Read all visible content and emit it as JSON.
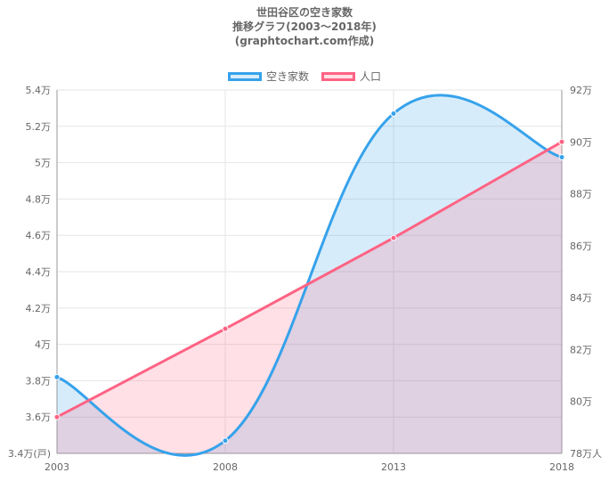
{
  "title_lines": [
    "世田谷区の空き家数",
    "推移グラフ(2003〜2018年)",
    "(graphtochart.com作成)"
  ],
  "colors": {
    "vacant_line": "#36a2eb",
    "vacant_fill": "rgba(54,162,235,0.2)",
    "pop_line": "#ff6384",
    "pop_fill": "rgba(255,99,132,0.2)",
    "grid": "#e5e5e5",
    "axis": "#999999"
  },
  "chart_data": {
    "type": "line",
    "x": [
      "2003",
      "2008",
      "2013",
      "2018"
    ],
    "series": [
      {
        "name": "空き家数",
        "axis": "left",
        "values": [
          38200,
          34700,
          52700,
          50300
        ],
        "fill": true
      },
      {
        "name": "人口",
        "axis": "right",
        "values": [
          79.4,
          82.8,
          86.3,
          90.0
        ],
        "fill": true
      }
    ],
    "legend": "top",
    "y_left": {
      "range": [
        34000,
        54000
      ],
      "ticks": [
        34000,
        36000,
        38000,
        40000,
        42000,
        44000,
        46000,
        48000,
        50000,
        52000,
        54000
      ],
      "tick_labels": [
        "3.4万(戸)",
        "3.6万",
        "3.8万",
        "4万",
        "4.2万",
        "4.4万",
        "4.6万",
        "4.8万",
        "5万",
        "5.2万",
        "5.4万"
      ]
    },
    "y_right": {
      "range": [
        78,
        92
      ],
      "ticks": [
        78,
        80,
        82,
        84,
        86,
        88,
        90,
        92
      ],
      "tick_labels": [
        "78万人",
        "80万",
        "82万",
        "84万",
        "86万",
        "88万",
        "90万",
        "92万"
      ]
    },
    "grid": true
  }
}
